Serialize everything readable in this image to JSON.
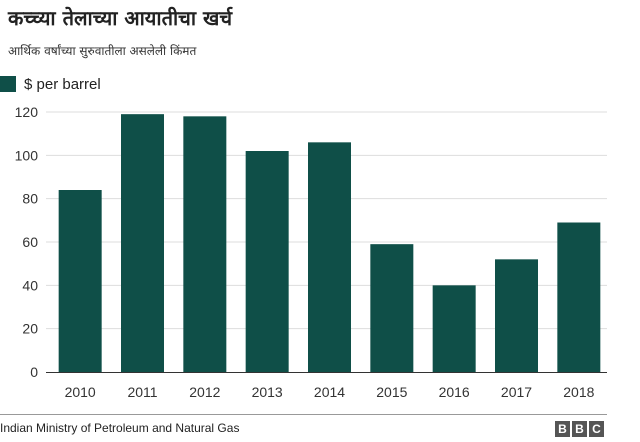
{
  "header": {
    "title": "कच्च्या तेलाच्या आयातीचा खर्च",
    "subtitle": "आर्थिक वर्षांच्या सुरुवातीला असलेली किंमत"
  },
  "colors": {
    "bar": "#0f4f48",
    "grid": "#dddddd",
    "axis": "#333333"
  },
  "chart_data": {
    "type": "bar",
    "categories": [
      "2010",
      "2011",
      "2012",
      "2013",
      "2014",
      "2015",
      "2016",
      "2017",
      "2018"
    ],
    "series": [
      {
        "name": "$ per barrel",
        "values": [
          84,
          119,
          118,
          102,
          106,
          59,
          40,
          52,
          69
        ]
      }
    ],
    "title": "कच्च्या तेलाच्या आयातीचा खर्च",
    "subtitle": "आर्थिक वर्षांच्या सुरुवातीला असलेली किंमत",
    "xlabel": "",
    "ylabel": "",
    "ylim": [
      0,
      120
    ],
    "yticks": [
      0,
      20,
      40,
      60,
      80,
      100,
      120
    ],
    "grid": true,
    "legend": "top-left"
  },
  "footer": {
    "source": "Indian Ministry of Petroleum and Natural Gas",
    "logo_letters": [
      "B",
      "B",
      "C"
    ]
  }
}
